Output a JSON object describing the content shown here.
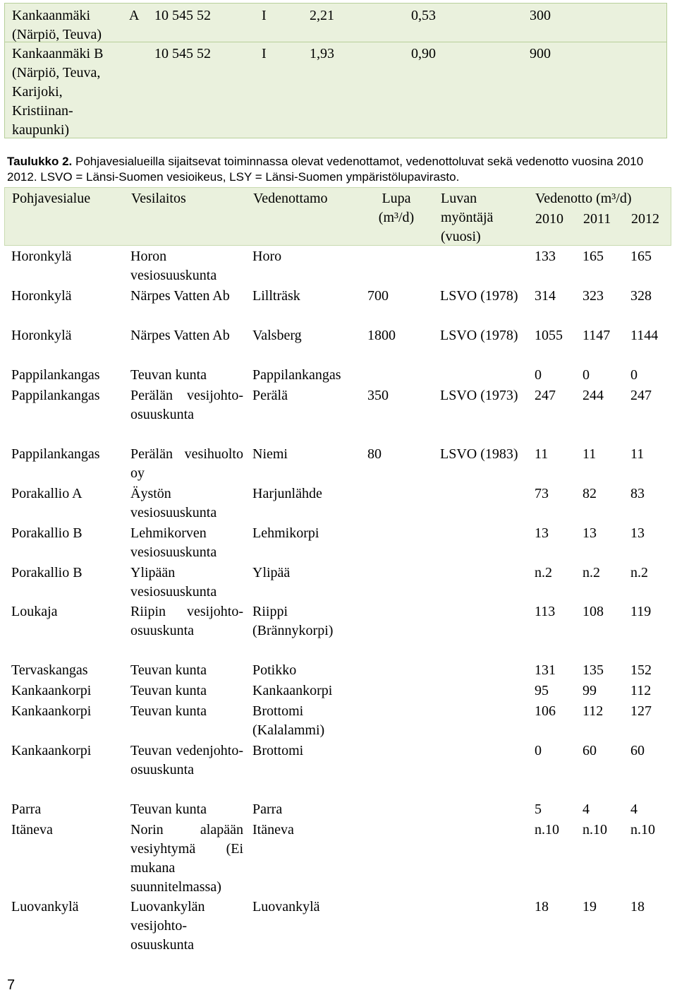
{
  "top_table": {
    "rows": [
      {
        "area": "Kankaanmäki",
        "area_suffix": "A",
        "area_extra": "(Närpiö, Teuva)",
        "code": "10 545 52",
        "class": "I",
        "v1": "2,21",
        "v2": "0,53",
        "v3": "300"
      },
      {
        "area": "Kankaanmäki B",
        "area_suffix": "",
        "area_extra": "(Närpiö, Teuva, Karijoki, Kristiinan- kaupunki)",
        "code": "10 545 52",
        "class": "I",
        "v1": "1,93",
        "v2": "0,90",
        "v3": "900"
      }
    ]
  },
  "caption": {
    "label": "Taulukko 2.",
    "text": " Pohjavesialueilla sijaitsevat toiminnassa olevat vedenottamot, vedenottoluvat sekä vedenotto vuosina 2010 2012. LSVO = Länsi-Suomen vesioikeus, LSY = Länsi-Suomen ympäristölupavirasto."
  },
  "headers": {
    "area": "Pohjavesialue",
    "utility": "Vesilaitos",
    "intake": "Vedenottamo",
    "permit": "Lupa (m³/d)",
    "grantor": "Luvan myöntäjä (vuosi)",
    "withdrawal": "Vedenotto (m³/d)",
    "years": [
      "2010",
      "2011",
      "2012"
    ]
  },
  "rows": [
    {
      "area": "Horonkylä",
      "utility": "Horon vesiosuuskunta",
      "intake": "Horo",
      "permit": "",
      "grantor": "",
      "y2010": "133",
      "y2011": "165",
      "y2012": "165"
    },
    {
      "area": "Horonkylä",
      "utility": "Närpes Vatten Ab",
      "intake": "Lillträsk",
      "permit": "700",
      "grantor": "LSVO (1978)",
      "y2010": "314",
      "y2011": "323",
      "y2012": "328"
    },
    {
      "area": "Horonkylä",
      "utility": "Närpes Vatten Ab",
      "intake": "Valsberg",
      "permit": "1800",
      "grantor": "LSVO (1978)",
      "y2010": "1055",
      "y2011": "1147",
      "y2012": "1144"
    },
    {
      "area": "Pappilankangas",
      "utility": "Teuvan kunta",
      "intake": "Pappilankangas",
      "permit": "",
      "grantor": "",
      "y2010": "0",
      "y2011": "0",
      "y2012": "0"
    },
    {
      "area": "Pappilankangas",
      "utility": "Perälän vesijohto-osuuskunta",
      "intake": "Perälä",
      "permit": "350",
      "grantor": "LSVO (1973)",
      "y2010": "247",
      "y2011": "244",
      "y2012": "247"
    },
    {
      "area": "Pappilankangas",
      "utility": "Perälän vesihuolto oy",
      "intake": "Niemi",
      "permit": "80",
      "grantor": "LSVO (1983)",
      "y2010": "11",
      "y2011": "11",
      "y2012": "11"
    },
    {
      "area": "Porakallio A",
      "utility": "Äystön vesiosuuskunta",
      "intake": "Harjunlähde",
      "permit": "",
      "grantor": "",
      "y2010": "73",
      "y2011": "82",
      "y2012": "83"
    },
    {
      "area": "Porakallio B",
      "utility": "Lehmikorven vesiosuuskunta",
      "intake": "Lehmikorpi",
      "permit": "",
      "grantor": "",
      "y2010": "13",
      "y2011": "13",
      "y2012": "13"
    },
    {
      "area": "Porakallio B",
      "utility": "Ylipään vesiosuuskunta",
      "intake": "Ylipää",
      "permit": "",
      "grantor": "",
      "y2010": "n.2",
      "y2011": "n.2",
      "y2012": "n.2"
    },
    {
      "area": "Loukaja",
      "utility": "Riipin vesijohto-osuuskunta",
      "intake": "Riippi (Brännykorpi)",
      "permit": "",
      "grantor": "",
      "y2010": "113",
      "y2011": "108",
      "y2012": "119"
    },
    {
      "area": "Tervaskangas",
      "utility": "Teuvan kunta",
      "intake": "Potikko",
      "permit": "",
      "grantor": "",
      "y2010": "131",
      "y2011": "135",
      "y2012": "152"
    },
    {
      "area": "Kankaankorpi",
      "utility": "Teuvan kunta",
      "intake": "Kankaankorpi",
      "permit": "",
      "grantor": "",
      "y2010": "95",
      "y2011": "99",
      "y2012": "112"
    },
    {
      "area": "Kankaankorpi",
      "utility": "Teuvan kunta",
      "intake": "Brottomi (Kalalammi)",
      "permit": "",
      "grantor": "",
      "y2010": "106",
      "y2011": "112",
      "y2012": "127"
    },
    {
      "area": "Kankaankorpi",
      "utility": "Teuvan vedenjohto-osuuskunta",
      "intake": "Brottomi",
      "permit": "",
      "grantor": "",
      "y2010": "0",
      "y2011": "60",
      "y2012": "60"
    },
    {
      "area": "Parra",
      "utility": "Teuvan kunta",
      "intake": "Parra",
      "permit": "",
      "grantor": "",
      "y2010": "5",
      "y2011": "4",
      "y2012": "4"
    },
    {
      "area": "Itäneva",
      "utility": "Norin alapään vesiyhtymä (Ei mukana suunnitelmassa)",
      "intake": "Itäneva",
      "permit": "",
      "grantor": "",
      "y2010": "n.10",
      "y2011": "n.10",
      "y2012": "n.10"
    },
    {
      "area": "Luovankylä",
      "utility": "Luovankylän vesijohto-osuuskunta",
      "intake": "Luovankylä",
      "permit": "",
      "grantor": "",
      "y2010": "18",
      "y2011": "19",
      "y2012": "18"
    }
  ],
  "page_number": "7"
}
